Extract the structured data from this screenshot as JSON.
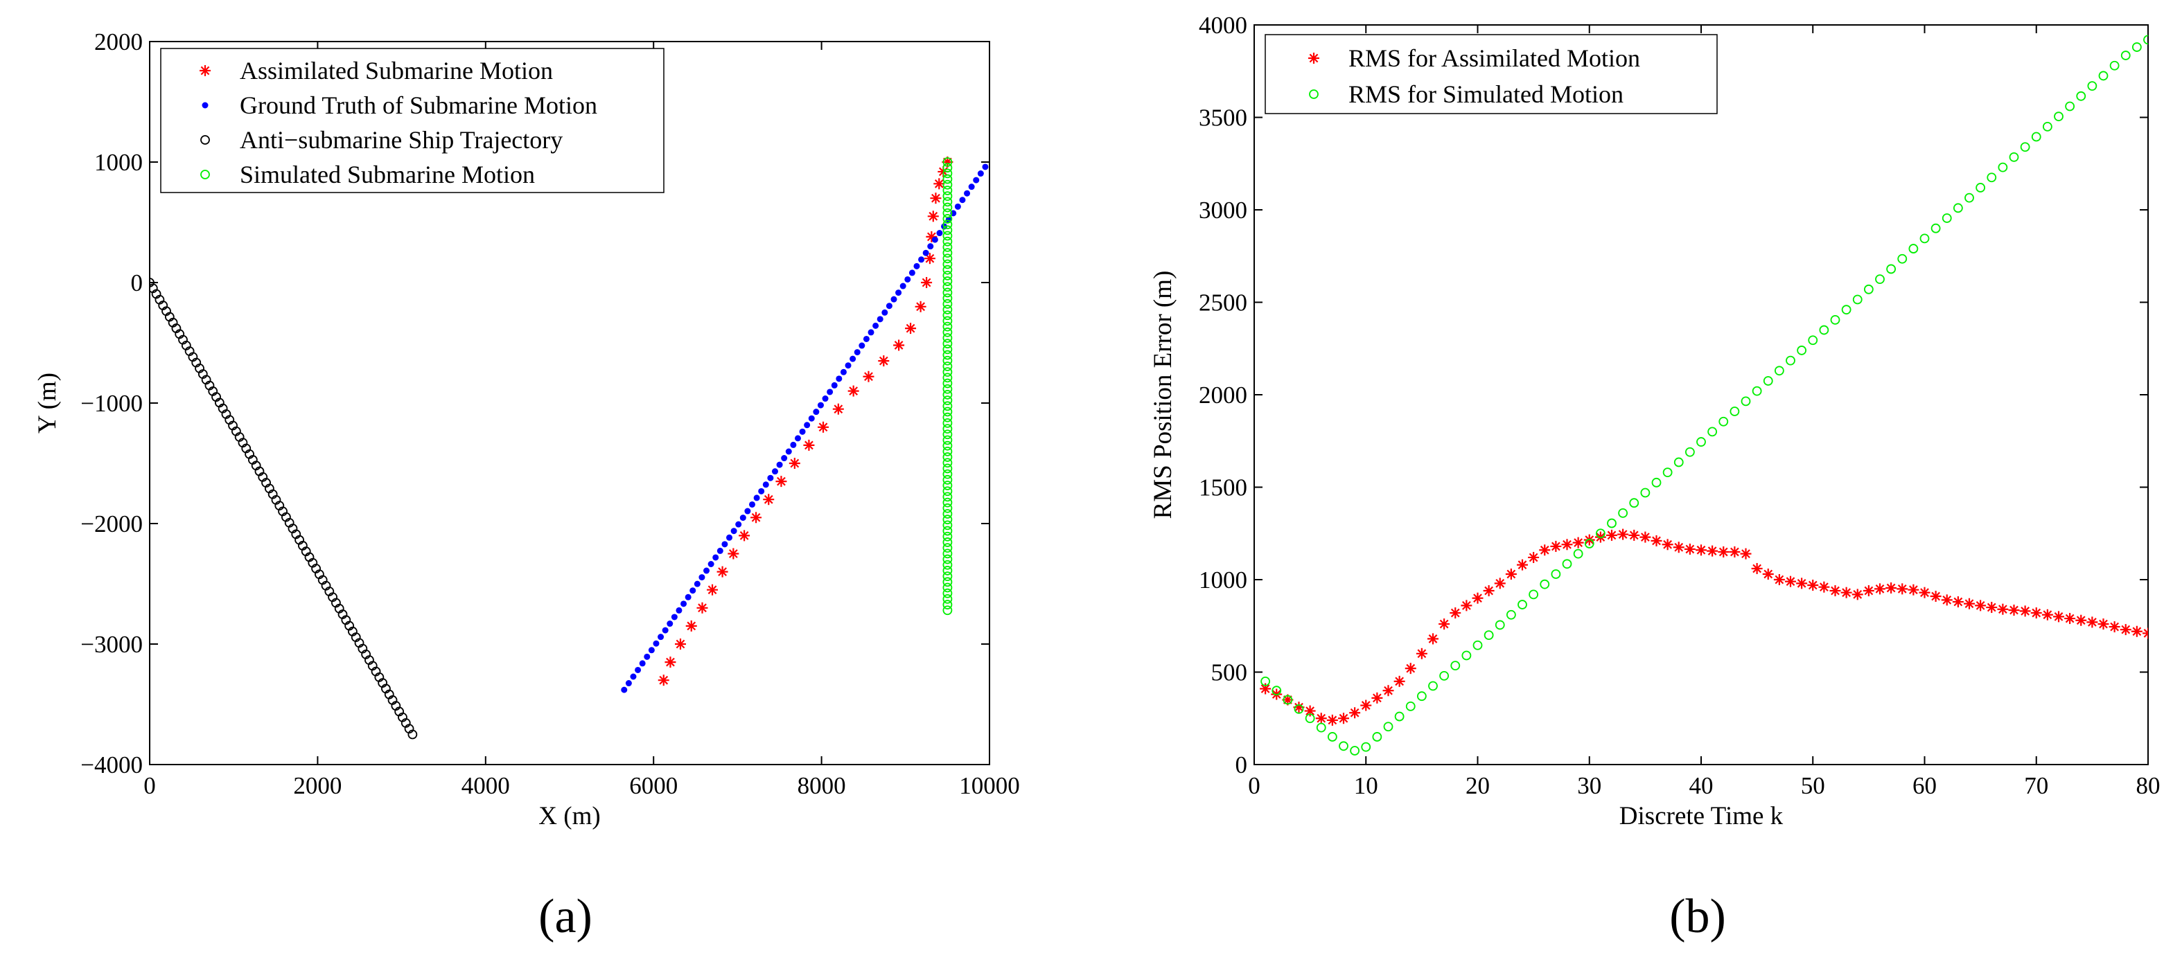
{
  "chart_data": [
    {
      "type": "scatter",
      "panel_label": "(a)",
      "xlabel": "X (m)",
      "ylabel": "Y (m)",
      "xlim": [
        0,
        10000
      ],
      "ylim": [
        -4000,
        2000
      ],
      "xticks": [
        0,
        2000,
        4000,
        6000,
        8000,
        10000
      ],
      "yticks": [
        -4000,
        -3000,
        -2000,
        -1000,
        0,
        1000,
        2000
      ],
      "xtick_labels": [
        "0",
        "2000",
        "4000",
        "6000",
        "8000",
        "10000"
      ],
      "ytick_labels": [
        "−4000",
        "−3000",
        "−2000",
        "−1000",
        "0",
        "1000",
        "2000"
      ],
      "legend_position": "top-left",
      "series": [
        {
          "name": "Assimilated Submarine Motion",
          "marker": "star",
          "color": "#ff0000",
          "x": [
            6120,
            6200,
            6320,
            6450,
            6580,
            6700,
            6820,
            6950,
            7080,
            7220,
            7370,
            7520,
            7680,
            7850,
            8020,
            8200,
            8380,
            8560,
            8740,
            8920,
            9060,
            9180,
            9250,
            9290,
            9310,
            9330,
            9360,
            9400,
            9450,
            9500
          ],
          "y": [
            -3300,
            -3150,
            -3000,
            -2850,
            -2700,
            -2550,
            -2400,
            -2250,
            -2100,
            -1950,
            -1800,
            -1650,
            -1500,
            -1350,
            -1200,
            -1050,
            -900,
            -780,
            -650,
            -520,
            -380,
            -200,
            0,
            200,
            380,
            550,
            700,
            820,
            920,
            1000
          ]
        },
        {
          "name": "Ground Truth of Submarine Motion",
          "marker": "dot",
          "color": "#0000ff",
          "x_start": 5650,
          "y_start": -3380,
          "x_end": 9950,
          "y_end": 960,
          "count": 80
        },
        {
          "name": "Anti−submarine Ship Trajectory",
          "marker": "circle",
          "color": "#000000",
          "x_start": 0,
          "y_start": 0,
          "x_end": 3130,
          "y_end": -3750,
          "count": 80
        },
        {
          "name": "Simulated Submarine Motion",
          "marker": "circle",
          "color": "#00ee00",
          "x_start": 9500,
          "y_start": 1000,
          "x_end": 9500,
          "y_end": -2720,
          "count": 80
        }
      ]
    },
    {
      "type": "scatter",
      "panel_label": "(b)",
      "xlabel": "Discrete Time k",
      "ylabel": "RMS Position Error (m)",
      "xlim": [
        0,
        80
      ],
      "ylim": [
        0,
        4000
      ],
      "xticks": [
        0,
        10,
        20,
        30,
        40,
        50,
        60,
        70,
        80
      ],
      "yticks": [
        0,
        500,
        1000,
        1500,
        2000,
        2500,
        3000,
        3500,
        4000
      ],
      "xtick_labels": [
        "0",
        "10",
        "20",
        "30",
        "40",
        "50",
        "60",
        "70",
        "80"
      ],
      "ytick_labels": [
        "0",
        "500",
        "1000",
        "1500",
        "2000",
        "2500",
        "3000",
        "3500",
        "4000"
      ],
      "legend_position": "top-left",
      "series": [
        {
          "name": "RMS for Assimilated Motion",
          "marker": "star",
          "color": "#ff0000",
          "x": [
            1,
            2,
            3,
            4,
            5,
            6,
            7,
            8,
            9,
            10,
            11,
            12,
            13,
            14,
            15,
            16,
            17,
            18,
            19,
            20,
            21,
            22,
            23,
            24,
            25,
            26,
            27,
            28,
            29,
            30,
            31,
            32,
            33,
            34,
            35,
            36,
            37,
            38,
            39,
            40,
            41,
            42,
            43,
            44,
            45,
            46,
            47,
            48,
            49,
            50,
            51,
            52,
            53,
            54,
            55,
            56,
            57,
            58,
            59,
            60,
            61,
            62,
            63,
            64,
            65,
            66,
            67,
            68,
            69,
            70,
            71,
            72,
            73,
            74,
            75,
            76,
            77,
            78,
            79,
            80
          ],
          "y": [
            410,
            380,
            350,
            310,
            290,
            250,
            240,
            250,
            280,
            320,
            360,
            400,
            450,
            520,
            600,
            680,
            760,
            820,
            860,
            900,
            940,
            980,
            1030,
            1080,
            1120,
            1160,
            1180,
            1190,
            1200,
            1215,
            1230,
            1240,
            1245,
            1240,
            1230,
            1210,
            1190,
            1175,
            1165,
            1160,
            1155,
            1150,
            1150,
            1140,
            1060,
            1030,
            1000,
            990,
            980,
            970,
            960,
            940,
            930,
            920,
            940,
            950,
            955,
            950,
            945,
            930,
            910,
            890,
            880,
            870,
            860,
            850,
            840,
            835,
            830,
            820,
            810,
            800,
            790,
            780,
            770,
            760,
            745,
            730,
            720,
            710
          ]
        },
        {
          "name": "RMS for Simulated Motion",
          "marker": "circle",
          "color": "#00ee00",
          "x": [
            1,
            2,
            3,
            4,
            5,
            6,
            7,
            8,
            9,
            10,
            11,
            12,
            13,
            14,
            15,
            16,
            17,
            18,
            19,
            20,
            21,
            22,
            23,
            24,
            25,
            26,
            27,
            28,
            29,
            30,
            31,
            32,
            33,
            34,
            35,
            36,
            37,
            38,
            39,
            40,
            41,
            42,
            43,
            44,
            45,
            46,
            47,
            48,
            49,
            50,
            51,
            52,
            53,
            54,
            55,
            56,
            57,
            58,
            59,
            60,
            61,
            62,
            63,
            64,
            65,
            66,
            67,
            68,
            69,
            70,
            71,
            72,
            73,
            74,
            75,
            76,
            77,
            78,
            79,
            80
          ],
          "y": [
            450,
            400,
            350,
            300,
            250,
            200,
            150,
            100,
            75,
            95,
            150,
            205,
            260,
            315,
            370,
            425,
            480,
            535,
            590,
            645,
            700,
            755,
            810,
            865,
            920,
            975,
            1030,
            1085,
            1140,
            1195,
            1250,
            1305,
            1360,
            1415,
            1470,
            1525,
            1580,
            1635,
            1690,
            1745,
            1800,
            1855,
            1910,
            1965,
            2020,
            2075,
            2130,
            2185,
            2240,
            2295,
            2350,
            2405,
            2460,
            2515,
            2570,
            2625,
            2680,
            2735,
            2790,
            2845,
            2900,
            2955,
            3010,
            3065,
            3120,
            3175,
            3230,
            3285,
            3340,
            3395,
            3450,
            3505,
            3560,
            3615,
            3670,
            3725,
            3780,
            3835,
            3880,
            3920
          ]
        }
      ]
    }
  ]
}
